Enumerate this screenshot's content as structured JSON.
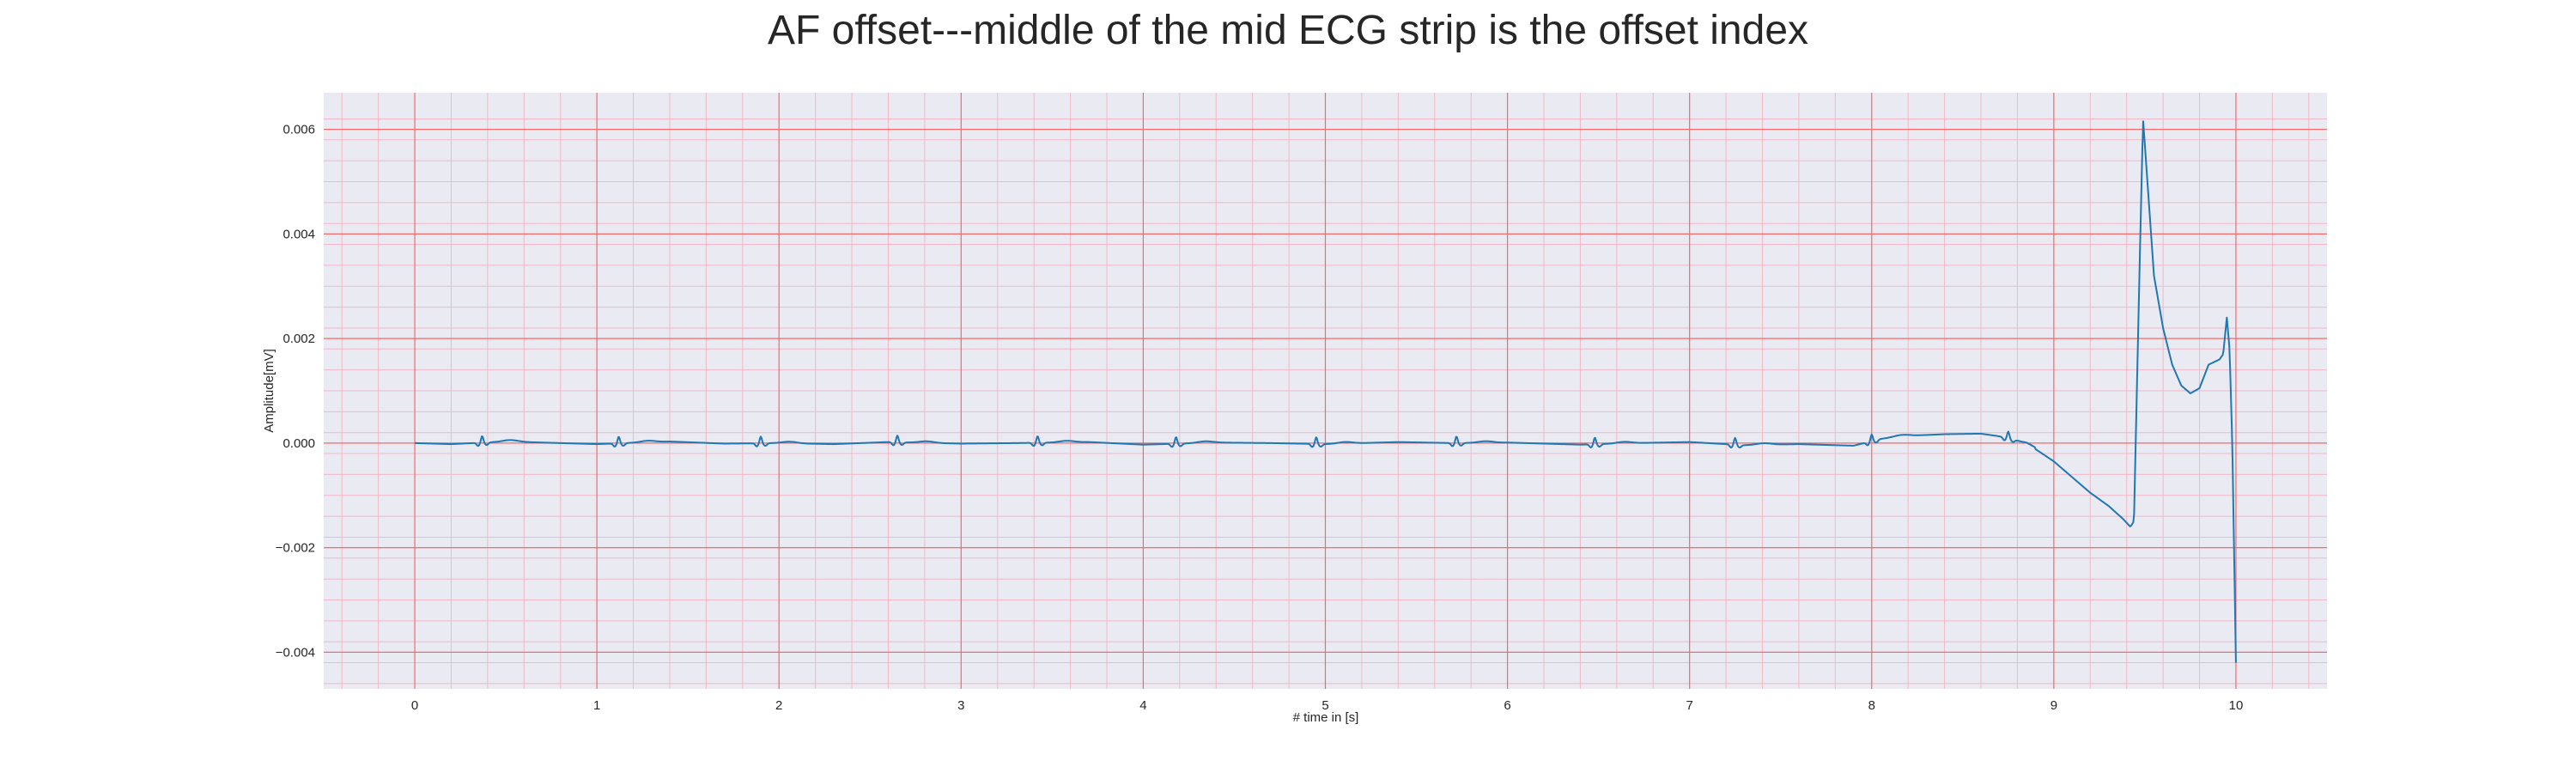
{
  "chart_data": {
    "type": "line",
    "title": "AF offset---middle of the mid ECG strip is the offset index",
    "xlabel": "# time in [s]",
    "ylabel": "Amplitude[mV]",
    "xlim": [
      -0.5,
      10.5
    ],
    "ylim": [
      -0.0047,
      0.0067
    ],
    "x_ticks": [
      0,
      1,
      2,
      3,
      4,
      5,
      6,
      7,
      8,
      9,
      10
    ],
    "x_tick_labels": [
      "0",
      "1",
      "2",
      "3",
      "4",
      "5",
      "6",
      "7",
      "8",
      "9",
      "10"
    ],
    "y_ticks": [
      -0.004,
      -0.002,
      0.0,
      0.002,
      0.004,
      0.006
    ],
    "y_tick_labels": [
      "−0.004",
      "−0.002",
      "0.000",
      "0.002",
      "0.004",
      "0.006"
    ],
    "grid": true,
    "minor_grid": true,
    "beat_times": [
      0.37,
      1.12,
      1.9,
      2.65,
      3.42,
      4.18,
      4.95,
      5.72,
      6.48,
      7.25,
      8.0,
      8.75
    ],
    "series": [
      {
        "color": "#1f77b4",
        "x": [
          0.0,
          0.2,
          0.5,
          0.8,
          1.0,
          1.4,
          1.7,
          2.0,
          2.3,
          2.6,
          3.0,
          3.3,
          3.7,
          4.0,
          4.4,
          4.7,
          5.0,
          5.4,
          5.7,
          6.0,
          6.4,
          6.7,
          7.0,
          7.3,
          7.6,
          7.9,
          8.05,
          8.2,
          8.4,
          8.6,
          8.72,
          8.85,
          9.0,
          9.1,
          9.2,
          9.3,
          9.38,
          9.42,
          9.44,
          9.47,
          9.49,
          9.52,
          9.55,
          9.6,
          9.65,
          9.7,
          9.75,
          9.8,
          9.85,
          9.88,
          9.91,
          9.93,
          9.95,
          9.965,
          9.98,
          10.0
        ],
        "y": [
          0.0,
          -2e-05,
          3e-05,
          0.0,
          -2e-05,
          3e-05,
          -1e-05,
          0.0,
          -2e-05,
          2e-05,
          -1e-05,
          0.0,
          2e-05,
          -3e-05,
          1e-05,
          0.0,
          -2e-05,
          2e-05,
          0.0,
          1e-05,
          -3e-05,
          0.0,
          2e-05,
          -4e-05,
          -2e-05,
          -5e-05,
          8e-05,
          0.00014,
          0.00017,
          0.00018,
          0.00012,
          0.0,
          -0.00035,
          -0.00065,
          -0.00095,
          -0.0012,
          -0.00145,
          -0.0016,
          -0.0015,
          0.0032,
          0.0062,
          0.0047,
          0.0032,
          0.0022,
          0.0015,
          0.0011,
          0.00095,
          0.00105,
          0.0015,
          0.00155,
          0.0016,
          0.0017,
          0.0024,
          0.0018,
          0.0,
          -0.0042
        ]
      }
    ]
  }
}
